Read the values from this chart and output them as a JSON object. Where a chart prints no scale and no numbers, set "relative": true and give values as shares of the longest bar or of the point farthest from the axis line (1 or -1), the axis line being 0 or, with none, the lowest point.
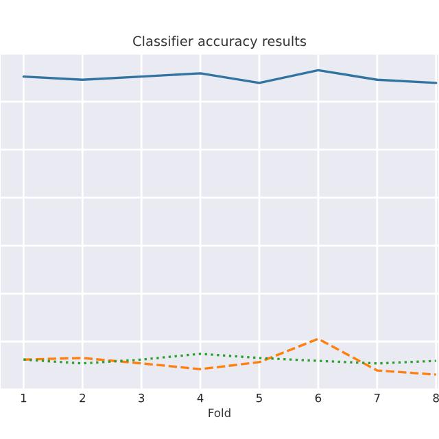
{
  "chart_data": {
    "type": "line",
    "title": "Classifier accuracy results",
    "xlabel": "Fold",
    "x": [
      1,
      2,
      3,
      4,
      5,
      6,
      7,
      8
    ],
    "xlim": [
      0.6,
      8.05
    ],
    "xticks": [
      1,
      2,
      3,
      4,
      5,
      6,
      7,
      8
    ],
    "relative": true,
    "grid": true,
    "tick_labels": "x",
    "series": [
      {
        "color": "#3274a1",
        "line_style": "solid",
        "values": [
          0.98,
          0.97,
          0.98,
          0.99,
          0.96,
          1.0,
          0.97,
          0.96
        ]
      },
      {
        "color": "#ff7f0e",
        "line_style": "dashed",
        "values": [
          0.094,
          0.099,
          0.082,
          0.064,
          0.086,
          0.159,
          0.06,
          0.047
        ]
      },
      {
        "color": "#2ca02c",
        "line_style": "dotted",
        "values": [
          0.094,
          0.082,
          0.094,
          0.112,
          0.099,
          0.09,
          0.082,
          0.09
        ]
      }
    ]
  }
}
